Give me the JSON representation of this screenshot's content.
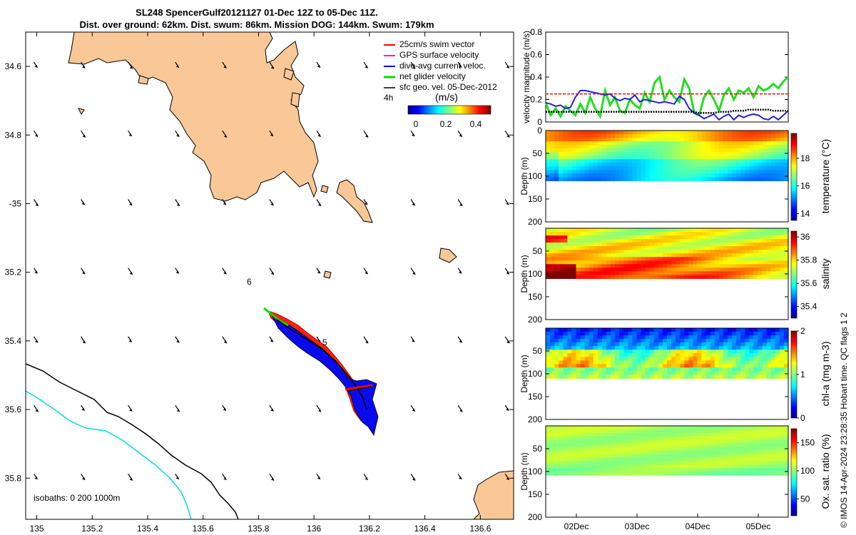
{
  "header": {
    "title_line1": "SL248 SpencerGulf20121127 01-Dec 12Z to 05-Dec 11Z.",
    "title_line2": "Dist. over ground: 62km. Dist. swum: 86km. Mission DOG: 144km. Swum: 179km"
  },
  "map": {
    "lon_ticks": [
      "135",
      "135.2",
      "135.4",
      "135.6",
      "135.8",
      "136",
      "136.2",
      "136.4",
      "136.6"
    ],
    "lat_ticks": [
      "34.6",
      "34.8",
      "-35",
      "35.2",
      "35.4",
      "35.6",
      "35.8"
    ],
    "lon_values": [
      135,
      135.2,
      135.4,
      135.6,
      135.8,
      136,
      136.2,
      136.4,
      136.6
    ],
    "lat_values": [
      -34.6,
      -34.8,
      -35,
      -35.2,
      -35.4,
      -35.6,
      -35.8
    ],
    "lon_range": [
      134.96,
      136.72
    ],
    "lat_range": [
      -35.92,
      -34.5
    ],
    "land_color": "#f9c896",
    "legend": {
      "items": [
        "25cm/s swim vector",
        "GPS surface velocity",
        "dive-avg current veloc.",
        "net glider velocity",
        "sfc geo. vel. 05-Dec-2012"
      ],
      "colors": [
        "#ff0000",
        "#ff00ff",
        "#0000ff",
        "#00dd00",
        "#000000"
      ],
      "timer_label": "4h",
      "colorbar_unit": "(m/s)",
      "colorbar_ticks": [
        "0",
        "0.2",
        "0.4"
      ]
    },
    "isobaths_label": "isobaths: 0   200   1000m",
    "annotation_6": "6",
    "annotation_5": "5"
  },
  "chart_data": [
    {
      "type": "line",
      "ylabel": "velocity magnitude (m/s)",
      "ylim": [
        0,
        0.8
      ],
      "yticks": [
        "0.8",
        "0.6",
        "0.4",
        "0.2",
        "0"
      ],
      "x_start": "01-Dec 12Z",
      "x_end": "05-Dec 11Z",
      "series": [
        {
          "name": "net glider velocity",
          "color": "#22dd22",
          "values": [
            0.17,
            0.06,
            0.12,
            0.05,
            0.14,
            0.1,
            0.06,
            0.16,
            0.08,
            0.22,
            0.12,
            0.05,
            0.28,
            0.15,
            0.22,
            0.1,
            0.08,
            0.2,
            0.15,
            0.12,
            0.26,
            0.18,
            0.35,
            0.4,
            0.2,
            0.28,
            0.22,
            0.18,
            0.38,
            0.3,
            0.08,
            0.06,
            0.22,
            0.28,
            0.2,
            0.1,
            0.24,
            0.3,
            0.2,
            0.28,
            0.26,
            0.3,
            0.22,
            0.32,
            0.28,
            0.3,
            0.34,
            0.3,
            0.36,
            0.4
          ]
        },
        {
          "name": "dive-avg current veloc.",
          "color": "#2222dd",
          "values": [
            0.17,
            0.16,
            0.14,
            0.15,
            0.12,
            0.13,
            0.22,
            0.28,
            0.28,
            0.27,
            0.26,
            0.25,
            0.24,
            0.25,
            0.21,
            0.19,
            0.21,
            0.2,
            0.24,
            0.18,
            0.2,
            0.19,
            0.18,
            0.17,
            0.18,
            0.17,
            0.16,
            0.23,
            0.2,
            0.12,
            0.08,
            0.06,
            0.03,
            0.05,
            0.07,
            0.02,
            0.05,
            0.07,
            0.02,
            0.06,
            0.04,
            0.06,
            0.07,
            0.06,
            0.03,
            0.02,
            0.05,
            0.02,
            0.06,
            0.1
          ]
        },
        {
          "name": "25cm/s swim vector",
          "color": "#ff0000",
          "style": "dashed",
          "values": [
            0.25,
            0.25,
            0.25,
            0.25,
            0.25,
            0.25,
            0.25,
            0.25,
            0.25,
            0.25,
            0.25,
            0.25,
            0.25,
            0.25,
            0.25,
            0.25,
            0.25,
            0.25,
            0.25,
            0.25,
            0.25,
            0.25,
            0.25,
            0.25,
            0.25,
            0.25,
            0.25,
            0.25,
            0.25,
            0.25,
            0.25,
            0.25,
            0.25,
            0.25,
            0.25,
            0.25,
            0.25,
            0.25,
            0.25,
            0.25,
            0.25,
            0.25,
            0.25,
            0.25,
            0.25,
            0.25,
            0.25,
            0.25,
            0.25,
            0.25
          ]
        },
        {
          "name": "sfc geo. vel.",
          "color": "#000000",
          "style": "dotted",
          "values": [
            0.09,
            0.09,
            0.09,
            0.09,
            0.09,
            0.09,
            0.09,
            0.09,
            0.09,
            0.09,
            0.09,
            0.09,
            0.09,
            0.09,
            0.09,
            0.09,
            0.09,
            0.09,
            0.09,
            0.09,
            0.09,
            0.09,
            0.09,
            0.09,
            0.09,
            0.09,
            0.09,
            0.09,
            0.09,
            0.09,
            0.09,
            0.08,
            0.08,
            0.08,
            0.08,
            0.09,
            0.09,
            0.09,
            0.1,
            0.1,
            0.1,
            0.11,
            0.11,
            0.11,
            0.11,
            0.11,
            0.1,
            0.1,
            0.1,
            0.1
          ]
        }
      ]
    },
    {
      "type": "heatmap",
      "ylabel": "Depth (m)",
      "yticks": [
        "0",
        "50",
        "100",
        "150",
        "200"
      ],
      "colorbar_label": "temperature (°C)",
      "colorbar_ticks": [
        "18",
        "16",
        "14"
      ],
      "colorbar_values": [
        18,
        16,
        14
      ],
      "crange": [
        13.5,
        19.8
      ],
      "colormap": "jet",
      "bottom_depth": 110,
      "surface_value": 17.6,
      "deep_value": 16.0
    },
    {
      "type": "heatmap",
      "ylabel": "Depth (m)",
      "yticks": [
        "50",
        "100",
        "150",
        "200"
      ],
      "colorbar_label": "salinity",
      "colorbar_ticks": [
        "36",
        "35.8",
        "35.6",
        "35.4"
      ],
      "colorbar_values": [
        36,
        35.8,
        35.6,
        35.4
      ],
      "crange": [
        35.3,
        36.05
      ],
      "colormap": "jet",
      "bottom_depth": 110,
      "surface_value": 35.73,
      "deep_value": 35.85
    },
    {
      "type": "heatmap",
      "ylabel": "Depth (m)",
      "yticks": [
        "50",
        "100",
        "150",
        "200"
      ],
      "colorbar_label": "chl-a (mg m-3)",
      "colorbar_ticks": [
        "2",
        "1",
        "0"
      ],
      "colorbar_values": [
        2,
        1,
        0
      ],
      "crange": [
        0,
        2
      ],
      "colormap": "jet",
      "bottom_depth": 110,
      "surface_value": 0.3,
      "deep_value": 1.1
    },
    {
      "type": "heatmap",
      "ylabel": "Depth (m)",
      "yticks": [
        "50",
        "100",
        "150",
        "200"
      ],
      "xticks": [
        "02Dec",
        "03Dec",
        "04Dec",
        "05Dec"
      ],
      "colorbar_label": "Ox. sat. ratio (%)",
      "colorbar_ticks": [
        "150",
        "100",
        "50"
      ],
      "colorbar_values": [
        150,
        100,
        50
      ],
      "crange": [
        20,
        175
      ],
      "colormap": "jet",
      "bottom_depth": 108,
      "surface_value": 105,
      "deep_value": 103
    }
  ],
  "credit": "© IMOS 14-Apr-2024 23:28:35 Hobart time. QC flags 1  2"
}
